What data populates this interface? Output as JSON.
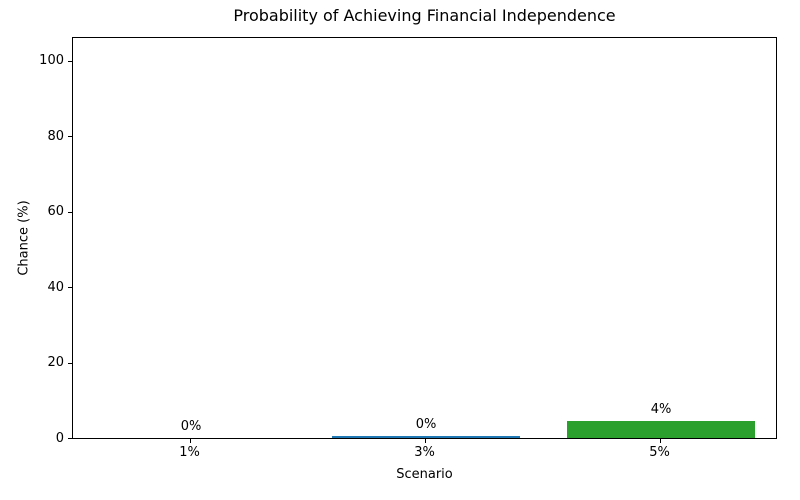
{
  "chart_data": {
    "type": "bar",
    "title": "Probability of Achieving Financial Independence",
    "xlabel": "Scenario",
    "ylabel": "Chance (%)",
    "categories": [
      "1%",
      "3%",
      "5%"
    ],
    "values": [
      0,
      0.5,
      4.5
    ],
    "bar_value_labels": [
      "0%",
      "0%",
      "4%"
    ],
    "bar_colors": [
      null,
      "#1f77b4",
      "#2ca02c"
    ],
    "yticks": [
      0,
      20,
      40,
      60,
      80,
      100
    ],
    "ylim": [
      0,
      106.6
    ],
    "grid": false,
    "legend_position": "none",
    "spine_color": "#000000",
    "text_color": "#000000",
    "background_color": "#ffffff"
  }
}
